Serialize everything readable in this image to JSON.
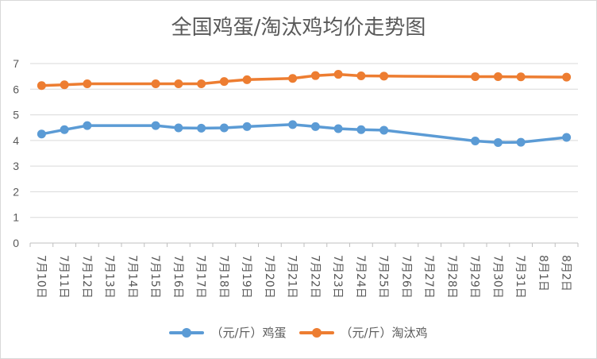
{
  "chart_data": {
    "type": "line",
    "title": "全国鸡蛋/淘汰鸡均价走势图",
    "categories": [
      "7月10日",
      "7月11日",
      "7月12日",
      "7月13日",
      "7月14日",
      "7月15日",
      "7月16日",
      "7月17日",
      "7月18日",
      "7月19日",
      "7月20日",
      "7月21日",
      "7月22日",
      "7月23日",
      "7月24日",
      "7月25日",
      "7月26日",
      "7月27日",
      "7月28日",
      "7月29日",
      "7月30日",
      "7月31日",
      "8月1日",
      "8月2日"
    ],
    "series": [
      {
        "name": "（元/斤）鸡蛋",
        "color": "#5B9BD5",
        "values": [
          4.25,
          4.42,
          4.58,
          null,
          null,
          4.58,
          4.49,
          4.48,
          4.49,
          4.54,
          null,
          4.62,
          4.54,
          4.46,
          4.42,
          4.4,
          null,
          null,
          null,
          3.98,
          3.92,
          3.93,
          null,
          4.12
        ]
      },
      {
        "name": "（元/斤）淘汰鸡",
        "color": "#ED7D31",
        "values": [
          6.14,
          6.17,
          6.21,
          null,
          null,
          6.21,
          6.21,
          6.21,
          6.3,
          6.37,
          null,
          6.42,
          6.53,
          6.58,
          6.52,
          6.51,
          null,
          null,
          null,
          6.49,
          6.49,
          6.48,
          null,
          6.47
        ]
      }
    ],
    "ylim": [
      0,
      7
    ],
    "yticks": [
      0,
      1,
      2,
      3,
      4,
      5,
      6,
      7
    ],
    "grid": true,
    "legend": "bottom"
  }
}
